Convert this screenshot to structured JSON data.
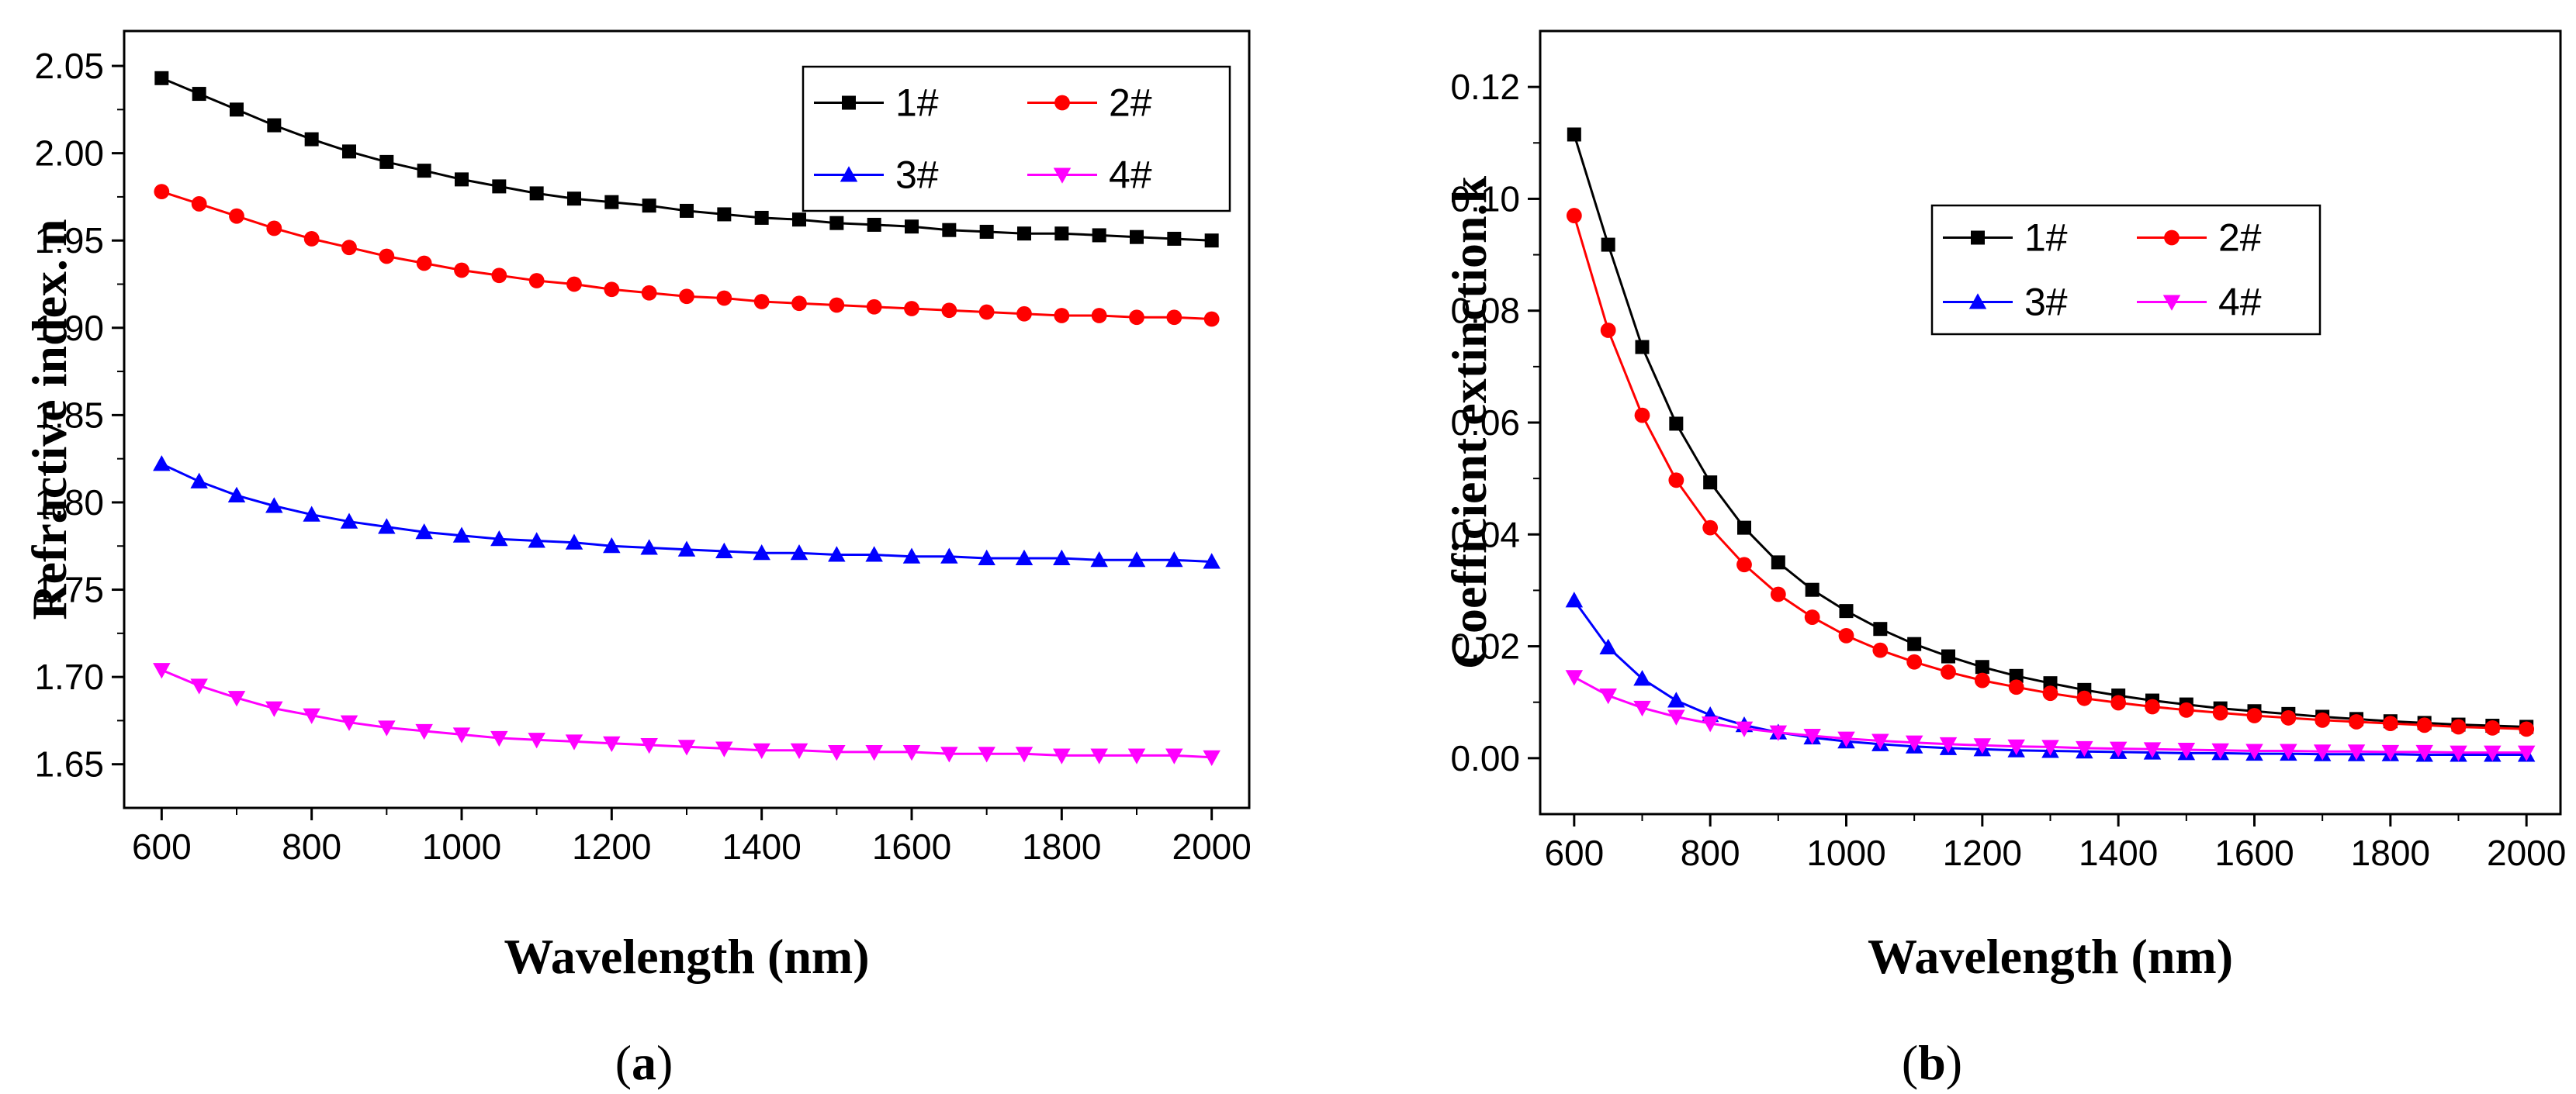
{
  "chart_data": [
    {
      "id": "a",
      "type": "line",
      "panel_label": {
        "open": "(",
        "letter": "a",
        "close": ")"
      },
      "title": "",
      "xlabel": "Wavelength (nm)",
      "ylabel": "Refractive index. n",
      "xlim": [
        550,
        2050
      ],
      "ylim": [
        1.625,
        2.07
      ],
      "xticks": [
        600,
        800,
        1000,
        1200,
        1400,
        1600,
        1800,
        2000
      ],
      "yticks": [
        1.65,
        1.7,
        1.75,
        1.8,
        1.85,
        1.9,
        1.95,
        2.0,
        2.05
      ],
      "ytick_labels": [
        "1.65",
        "1.70",
        "1.75",
        "1.80",
        "1.85",
        "1.90",
        "1.95",
        "2.00",
        "2.05"
      ],
      "legend": {
        "position": "top-right",
        "entries": [
          "1#",
          "2#",
          "3#",
          "4#"
        ]
      },
      "x": [
        600,
        650,
        700,
        750,
        800,
        850,
        900,
        950,
        1000,
        1050,
        1100,
        1150,
        1200,
        1250,
        1300,
        1350,
        1400,
        1450,
        1500,
        1550,
        1600,
        1650,
        1700,
        1750,
        1800,
        1850,
        1900,
        1950,
        2000
      ],
      "series": [
        {
          "name": "1#",
          "color": "#000000",
          "marker": "square",
          "values": [
            2.043,
            2.034,
            2.025,
            2.016,
            2.008,
            2.001,
            1.995,
            1.99,
            1.985,
            1.981,
            1.977,
            1.974,
            1.972,
            1.97,
            1.967,
            1.965,
            1.963,
            1.962,
            1.96,
            1.959,
            1.958,
            1.956,
            1.955,
            1.954,
            1.954,
            1.953,
            1.952,
            1.951,
            1.95
          ]
        },
        {
          "name": "2#",
          "color": "#ff0000",
          "marker": "circle",
          "values": [
            1.978,
            1.971,
            1.964,
            1.957,
            1.951,
            1.946,
            1.941,
            1.937,
            1.933,
            1.93,
            1.927,
            1.925,
            1.922,
            1.92,
            1.918,
            1.917,
            1.915,
            1.914,
            1.913,
            1.912,
            1.911,
            1.91,
            1.909,
            1.908,
            1.907,
            1.907,
            1.906,
            1.906,
            1.905
          ]
        },
        {
          "name": "3#",
          "color": "#0000ff",
          "marker": "triangle-up",
          "values": [
            1.822,
            1.812,
            1.804,
            1.798,
            1.793,
            1.789,
            1.786,
            1.783,
            1.781,
            1.779,
            1.778,
            1.777,
            1.775,
            1.774,
            1.773,
            1.772,
            1.771,
            1.771,
            1.77,
            1.77,
            1.769,
            1.769,
            1.768,
            1.768,
            1.768,
            1.767,
            1.767,
            1.767,
            1.766
          ]
        },
        {
          "name": "4#",
          "color": "#ff00ff",
          "marker": "triangle-down",
          "values": [
            1.704,
            1.695,
            1.688,
            1.682,
            1.678,
            1.674,
            1.671,
            1.669,
            1.667,
            1.665,
            1.664,
            1.663,
            1.662,
            1.661,
            1.66,
            1.659,
            1.658,
            1.658,
            1.657,
            1.657,
            1.657,
            1.656,
            1.656,
            1.656,
            1.655,
            1.655,
            1.655,
            1.655,
            1.654
          ]
        }
      ]
    },
    {
      "id": "b",
      "type": "line",
      "panel_label": {
        "open": "(",
        "letter": "b",
        "close": ")"
      },
      "title": "",
      "xlabel": "Wavelength (nm)",
      "ylabel": "Coefficient extinction.k",
      "xlim": [
        550,
        2050
      ],
      "ylim": [
        -0.01,
        0.13
      ],
      "xticks": [
        600,
        800,
        1000,
        1200,
        1400,
        1600,
        1800,
        2000
      ],
      "yticks": [
        0.0,
        0.02,
        0.04,
        0.06,
        0.08,
        0.1,
        0.12
      ],
      "ytick_labels": [
        "0.00",
        "0.02",
        "0.04",
        "0.06",
        "0.08",
        "0.10",
        "0.12"
      ],
      "legend": {
        "position": "top-center",
        "entries": [
          "1#",
          "2#",
          "3#",
          "4#"
        ]
      },
      "x": [
        600,
        650,
        700,
        750,
        800,
        850,
        900,
        950,
        1000,
        1050,
        1100,
        1150,
        1200,
        1250,
        1300,
        1350,
        1400,
        1450,
        1500,
        1550,
        1600,
        1650,
        1700,
        1750,
        1800,
        1850,
        1900,
        1950,
        2000
      ],
      "series": [
        {
          "name": "1#",
          "color": "#000000",
          "marker": "square",
          "values": [
            0.1115,
            0.0918,
            0.0735,
            0.0598,
            0.0493,
            0.0412,
            0.035,
            0.0301,
            0.0263,
            0.0231,
            0.0204,
            0.0182,
            0.0163,
            0.0147,
            0.0134,
            0.0122,
            0.0112,
            0.0103,
            0.0096,
            0.0089,
            0.0084,
            0.0079,
            0.0074,
            0.007,
            0.0066,
            0.0063,
            0.006,
            0.0058,
            0.0056
          ]
        },
        {
          "name": "2#",
          "color": "#ff0000",
          "marker": "circle",
          "values": [
            0.097,
            0.0765,
            0.0613,
            0.0497,
            0.0412,
            0.0346,
            0.0293,
            0.0252,
            0.0219,
            0.0193,
            0.0172,
            0.0154,
            0.0139,
            0.0127,
            0.0116,
            0.0107,
            0.0099,
            0.0092,
            0.0086,
            0.0081,
            0.0076,
            0.0072,
            0.0068,
            0.0065,
            0.0062,
            0.0059,
            0.0056,
            0.0054,
            0.0052
          ]
        },
        {
          "name": "3#",
          "color": "#0000ff",
          "marker": "triangle-up",
          "values": [
            0.0282,
            0.0198,
            0.0142,
            0.0103,
            0.0077,
            0.0059,
            0.0046,
            0.0037,
            0.003,
            0.0025,
            0.0021,
            0.0018,
            0.0016,
            0.0014,
            0.0013,
            0.0012,
            0.0011,
            0.001,
            0.0009,
            0.0009,
            0.0008,
            0.0008,
            0.0007,
            0.0007,
            0.0007,
            0.0006,
            0.0006,
            0.0006,
            0.0006
          ]
        },
        {
          "name": "4#",
          "color": "#ff00ff",
          "marker": "triangle-down",
          "values": [
            0.0145,
            0.0112,
            0.009,
            0.0074,
            0.0062,
            0.0053,
            0.0046,
            0.004,
            0.0035,
            0.0031,
            0.0028,
            0.0025,
            0.0023,
            0.0021,
            0.002,
            0.0018,
            0.0017,
            0.0016,
            0.0015,
            0.0014,
            0.0013,
            0.0013,
            0.0012,
            0.0012,
            0.0011,
            0.0011,
            0.001,
            0.001,
            0.001
          ]
        }
      ]
    }
  ]
}
